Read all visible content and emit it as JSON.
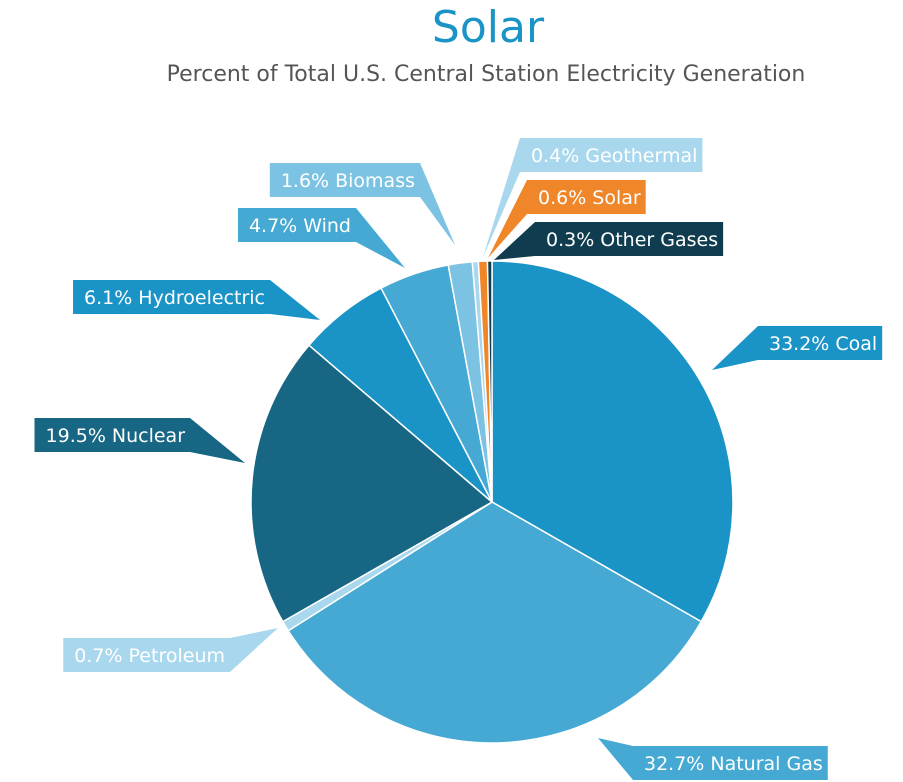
{
  "chart_data": {
    "type": "pie",
    "title": "Solar",
    "subtitle": "Percent of Total U.S. Central Station Electricity Generation",
    "categories": [
      "Coal",
      "Natural Gas",
      "Petroleum",
      "Nuclear",
      "Hydroelectric",
      "Wind",
      "Biomass",
      "Geothermal",
      "Solar",
      "Other Gases"
    ],
    "values": [
      33.2,
      32.7,
      0.7,
      19.5,
      6.1,
      4.7,
      1.6,
      0.4,
      0.6,
      0.3
    ],
    "value_labels": [
      "33.2%",
      "32.7%",
      "0.7%",
      "19.5%",
      "6.1%",
      "4.7%",
      "1.6%",
      "0.4%",
      "0.6%",
      "0.3%"
    ],
    "colors": [
      "#1a93c6",
      "#45a9d3",
      "#a9d8ee",
      "#176683",
      "#1a93c6",
      "#45a9d3",
      "#7cc3e3",
      "#a9d8ee",
      "#f0862a",
      "#0f3c4e"
    ]
  }
}
